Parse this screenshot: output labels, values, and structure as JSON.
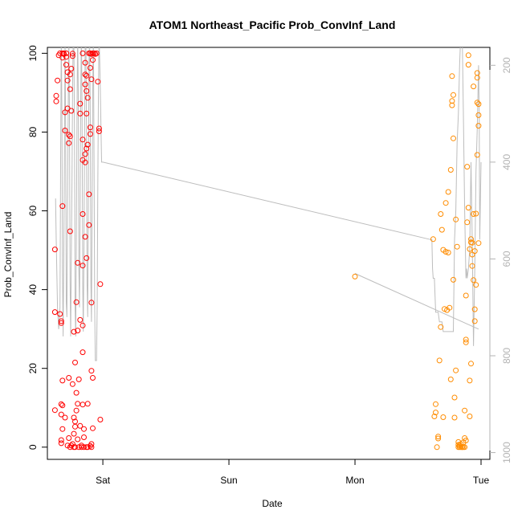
{
  "chart_data": {
    "type": "scatter",
    "title": "ATOM1 Northeast_Pacific Prob_ConvInf_Land",
    "xlabel": "Date",
    "ylabel": "Prob_ConvInf_Land",
    "x_unit": "days from Fri 00:00",
    "xlim": [
      0.56,
      4.07
    ],
    "ylim": [
      -3.1,
      101.5
    ],
    "x_ticks": [
      {
        "value": 1.0,
        "label": "Sat"
      },
      {
        "value": 2.0,
        "label": "Sun"
      },
      {
        "value": 3.0,
        "label": "Mon"
      },
      {
        "value": 4.0,
        "label": "Tue"
      }
    ],
    "y_ticks": [
      0,
      20,
      40,
      60,
      80,
      100
    ],
    "right_axis": {
      "ylim": [
        1014,
        163
      ],
      "ticks": [
        200,
        400,
        600,
        800,
        1000
      ],
      "color": "#b3b3b3"
    },
    "series": [
      {
        "color": "#ff0000",
        "marker": "open-circle",
        "points": [
          [
            0.62,
            9.4
          ],
          [
            0.62,
            50.2
          ],
          [
            0.62,
            34.3
          ],
          [
            0.63,
            87.8
          ],
          [
            0.63,
            89.2
          ],
          [
            0.64,
            93.1
          ],
          [
            0.65,
            99.5
          ],
          [
            0.66,
            100
          ],
          [
            0.66,
            33.8
          ],
          [
            0.67,
            32.0
          ],
          [
            0.67,
            31.5
          ],
          [
            0.67,
            10.9
          ],
          [
            0.67,
            8.3
          ],
          [
            0.67,
            1.8
          ],
          [
            0.67,
            1.0
          ],
          [
            0.68,
            100
          ],
          [
            0.68,
            98.9
          ],
          [
            0.68,
            61.2
          ],
          [
            0.68,
            16.9
          ],
          [
            0.68,
            10.6
          ],
          [
            0.68,
            4.6
          ],
          [
            0.69,
            99.8
          ],
          [
            0.69,
            100
          ],
          [
            0.7,
            85.0
          ],
          [
            0.7,
            80.4
          ],
          [
            0.7,
            7.5
          ],
          [
            0.71,
            99.1
          ],
          [
            0.71,
            97.1
          ],
          [
            0.71,
            100
          ],
          [
            0.72,
            93.1
          ],
          [
            0.72,
            95.2
          ],
          [
            0.72,
            86.0
          ],
          [
            0.72,
            0.4
          ],
          [
            0.73,
            77.2
          ],
          [
            0.73,
            79.3
          ],
          [
            0.73,
            2.3
          ],
          [
            0.73,
            17.6
          ],
          [
            0.74,
            94.6
          ],
          [
            0.74,
            90.9
          ],
          [
            0.74,
            78.9
          ],
          [
            0.74,
            54.8
          ],
          [
            0.74,
            0
          ],
          [
            0.75,
            96.1
          ],
          [
            0.75,
            85.4
          ],
          [
            0.75,
            0.4
          ],
          [
            0.76,
            99.3
          ],
          [
            0.76,
            99.9
          ],
          [
            0.76,
            16.0
          ],
          [
            0.76,
            0.8
          ],
          [
            0.77,
            29.3
          ],
          [
            0.77,
            7.5
          ],
          [
            0.77,
            3.4
          ],
          [
            0.77,
            0
          ],
          [
            0.78,
            21.5
          ],
          [
            0.78,
            6.5
          ],
          [
            0.78,
            5.2
          ],
          [
            0.78,
            0
          ],
          [
            0.79,
            36.8
          ],
          [
            0.79,
            13.8
          ],
          [
            0.79,
            9.3
          ],
          [
            0.8,
            46.8
          ],
          [
            0.8,
            29.6
          ],
          [
            0.8,
            11.0
          ],
          [
            0.8,
            2.0
          ],
          [
            0.81,
            17.2
          ],
          [
            0.81,
            0
          ],
          [
            0.82,
            87.2
          ],
          [
            0.82,
            84.7
          ],
          [
            0.82,
            32.3
          ],
          [
            0.82,
            5.4
          ],
          [
            0.83,
            0
          ],
          [
            0.83,
            0.4
          ],
          [
            0.84,
            100
          ],
          [
            0.84,
            78.1
          ],
          [
            0.84,
            72.9
          ],
          [
            0.84,
            59.2
          ],
          [
            0.84,
            46.1
          ],
          [
            0.84,
            30.9
          ],
          [
            0.84,
            24.1
          ],
          [
            0.84,
            10.8
          ],
          [
            0.85,
            0
          ],
          [
            0.85,
            2.5
          ],
          [
            0.85,
            4.6
          ],
          [
            0.86,
            97.6
          ],
          [
            0.86,
            94.6
          ],
          [
            0.86,
            92.1
          ],
          [
            0.86,
            74.4
          ],
          [
            0.86,
            72.3
          ],
          [
            0.86,
            53.4
          ],
          [
            0.87,
            94.3
          ],
          [
            0.87,
            90.4
          ],
          [
            0.87,
            84.7
          ],
          [
            0.87,
            75.8
          ],
          [
            0.87,
            48.0
          ],
          [
            0.87,
            0
          ],
          [
            0.88,
            88.7
          ],
          [
            0.88,
            76.8
          ],
          [
            0.88,
            11.0
          ],
          [
            0.88,
            0
          ],
          [
            0.89,
            100
          ],
          [
            0.89,
            56.4
          ],
          [
            0.89,
            64.2
          ],
          [
            0.9,
            100
          ],
          [
            0.9,
            96.3
          ],
          [
            0.9,
            81.2
          ],
          [
            0.9,
            79.5
          ],
          [
            0.9,
            0.3
          ],
          [
            0.91,
            99.8
          ],
          [
            0.91,
            93.4
          ],
          [
            0.91,
            36.7
          ],
          [
            0.91,
            19.4
          ],
          [
            0.91,
            0
          ],
          [
            0.91,
            0.8
          ],
          [
            0.92,
            100
          ],
          [
            0.92,
            98.3
          ],
          [
            0.92,
            17.6
          ],
          [
            0.92,
            4.8
          ],
          [
            0.93,
            100
          ],
          [
            0.94,
            99.8
          ],
          [
            0.95,
            100
          ],
          [
            0.96,
            92.8
          ],
          [
            0.97,
            80.9
          ],
          [
            0.97,
            80.2
          ],
          [
            0.98,
            41.4
          ],
          [
            0.98,
            7.0
          ]
        ]
      },
      {
        "color": "#ff8c00",
        "marker": "open-circle",
        "points": [
          [
            3.0,
            43.3
          ],
          [
            3.62,
            52.8
          ],
          [
            3.63,
            7.8
          ],
          [
            3.64,
            8.8
          ],
          [
            3.64,
            10.9
          ],
          [
            3.65,
            0
          ],
          [
            3.66,
            2.7
          ],
          [
            3.66,
            2.2
          ],
          [
            3.67,
            22.0
          ],
          [
            3.68,
            30.5
          ],
          [
            3.68,
            59.2
          ],
          [
            3.69,
            55.2
          ],
          [
            3.7,
            50.1
          ],
          [
            3.7,
            7.6
          ],
          [
            3.71,
            35.1
          ],
          [
            3.72,
            62.0
          ],
          [
            3.72,
            49.6
          ],
          [
            3.73,
            34.8
          ],
          [
            3.74,
            49.4
          ],
          [
            3.74,
            64.8
          ],
          [
            3.75,
            35.4
          ],
          [
            3.76,
            17.2
          ],
          [
            3.76,
            70.4
          ],
          [
            3.77,
            94.2
          ],
          [
            3.77,
            87.9
          ],
          [
            3.77,
            86.8
          ],
          [
            3.78,
            89.4
          ],
          [
            3.78,
            78.4
          ],
          [
            3.78,
            42.5
          ],
          [
            3.79,
            12.6
          ],
          [
            3.79,
            7.5
          ],
          [
            3.8,
            19.5
          ],
          [
            3.8,
            57.8
          ],
          [
            3.81,
            50.9
          ],
          [
            3.82,
            0
          ],
          [
            3.82,
            0.6
          ],
          [
            3.82,
            1.3
          ],
          [
            3.83,
            0
          ],
          [
            3.83,
            0.5
          ],
          [
            3.84,
            0
          ],
          [
            3.84,
            0.8
          ],
          [
            3.85,
            0
          ],
          [
            3.85,
            0
          ],
          [
            3.86,
            0
          ],
          [
            3.86,
            1.2
          ],
          [
            3.87,
            0
          ],
          [
            3.87,
            2.3
          ],
          [
            3.87,
            9.3
          ],
          [
            3.88,
            1.7
          ],
          [
            3.88,
            26.6
          ],
          [
            3.88,
            27.3
          ],
          [
            3.88,
            38.5
          ],
          [
            3.89,
            71.2
          ],
          [
            3.89,
            57.1
          ],
          [
            3.9,
            60.8
          ],
          [
            3.9,
            99.5
          ],
          [
            3.9,
            97.1
          ],
          [
            3.91,
            50.3
          ],
          [
            3.91,
            7.8
          ],
          [
            3.91,
            16.9
          ],
          [
            3.92,
            52.0
          ],
          [
            3.92,
            52.8
          ],
          [
            3.92,
            21.2
          ],
          [
            3.93,
            51.9
          ],
          [
            3.93,
            48.9
          ],
          [
            3.93,
            46.0
          ],
          [
            3.94,
            91.6
          ],
          [
            3.94,
            59.2
          ],
          [
            3.94,
            42.4
          ],
          [
            3.95,
            49.8
          ],
          [
            3.95,
            35.0
          ],
          [
            3.95,
            32.0
          ],
          [
            3.96,
            59.3
          ],
          [
            3.96,
            41.2
          ],
          [
            3.97,
            95.0
          ],
          [
            3.97,
            93.8
          ],
          [
            3.97,
            87.5
          ],
          [
            3.97,
            74.2
          ],
          [
            3.98,
            87.1
          ],
          [
            3.98,
            84.3
          ],
          [
            3.98,
            81.6
          ],
          [
            3.98,
            51.8
          ]
        ]
      }
    ],
    "trace": {
      "color": "#bdbdbd",
      "axis": "right",
      "points": [
        [
          0.625,
          475
        ],
        [
          0.63,
          560
        ],
        [
          0.64,
          700
        ],
        [
          0.65,
          745
        ],
        [
          0.66,
          700
        ],
        [
          0.665,
          400
        ],
        [
          0.67,
          130
        ],
        [
          0.675,
          300
        ],
        [
          0.68,
          620
        ],
        [
          0.685,
          760
        ],
        [
          0.69,
          600
        ],
        [
          0.695,
          400
        ],
        [
          0.7,
          130
        ],
        [
          0.705,
          350
        ],
        [
          0.71,
          690
        ],
        [
          0.715,
          720
        ],
        [
          0.72,
          500
        ],
        [
          0.725,
          300
        ],
        [
          0.73,
          130
        ],
        [
          0.735,
          300
        ],
        [
          0.74,
          650
        ],
        [
          0.745,
          760
        ],
        [
          0.75,
          600
        ],
        [
          0.755,
          450
        ],
        [
          0.76,
          250
        ],
        [
          0.765,
          130
        ],
        [
          0.77,
          150
        ],
        [
          0.775,
          350
        ],
        [
          0.78,
          700
        ],
        [
          0.785,
          760
        ],
        [
          0.79,
          550
        ],
        [
          0.795,
          300
        ],
        [
          0.8,
          130
        ],
        [
          0.805,
          260
        ],
        [
          0.81,
          620
        ],
        [
          0.815,
          700
        ],
        [
          0.82,
          500
        ],
        [
          0.825,
          250
        ],
        [
          0.83,
          130
        ],
        [
          0.835,
          300
        ],
        [
          0.84,
          650
        ],
        [
          0.845,
          750
        ],
        [
          0.85,
          600
        ],
        [
          0.855,
          350
        ],
        [
          0.86,
          150
        ],
        [
          0.865,
          130
        ],
        [
          0.87,
          320
        ],
        [
          0.875,
          650
        ],
        [
          0.88,
          720
        ],
        [
          0.885,
          500
        ],
        [
          0.89,
          200
        ],
        [
          0.895,
          130
        ],
        [
          0.9,
          300
        ],
        [
          0.905,
          650
        ],
        [
          0.91,
          730
        ],
        [
          0.915,
          500
        ],
        [
          0.92,
          250
        ],
        [
          0.925,
          130
        ],
        [
          0.93,
          400
        ],
        [
          0.935,
          700
        ],
        [
          0.94,
          810
        ],
        [
          0.95,
          810
        ],
        [
          0.955,
          700
        ],
        [
          0.96,
          450
        ],
        [
          0.965,
          250
        ],
        [
          0.97,
          130
        ],
        [
          0.98,
          250
        ],
        [
          0.99,
          400
        ],
        [
          1.0,
          400
        ],
        [
          3.6,
          560
        ],
        [
          3.61,
          560
        ],
        [
          3.615,
          620
        ],
        [
          3.62,
          640
        ],
        [
          3.63,
          640
        ],
        [
          3.64,
          710
        ],
        [
          3.65,
          710
        ],
        [
          3.66,
          710
        ],
        [
          3.67,
          730
        ],
        [
          3.69,
          730
        ],
        [
          3.7,
          750
        ],
        [
          3.72,
          750
        ],
        [
          3.74,
          750
        ],
        [
          3.76,
          750
        ],
        [
          3.78,
          750
        ],
        [
          3.79,
          560
        ],
        [
          3.8,
          500
        ],
        [
          3.81,
          360
        ],
        [
          3.82,
          300
        ],
        [
          3.83,
          200
        ],
        [
          3.84,
          130
        ],
        [
          3.85,
          130
        ],
        [
          3.86,
          300
        ],
        [
          3.87,
          500
        ],
        [
          3.88,
          640
        ],
        [
          3.885,
          620
        ],
        [
          3.89,
          640
        ],
        [
          3.9,
          620
        ],
        [
          3.91,
          580
        ],
        [
          3.92,
          400
        ],
        [
          3.93,
          560
        ],
        [
          3.94,
          780
        ],
        [
          3.95,
          620
        ],
        [
          3.96,
          420
        ],
        [
          3.97,
          330
        ],
        [
          3.98,
          200
        ],
        [
          3.985,
          300
        ],
        [
          3.99,
          560
        ],
        [
          4.0,
          400
        ]
      ],
      "return_segment": [
        [
          3.0,
          630
        ],
        [
          3.98,
          745
        ]
      ]
    },
    "grid": false,
    "legend": "none"
  }
}
